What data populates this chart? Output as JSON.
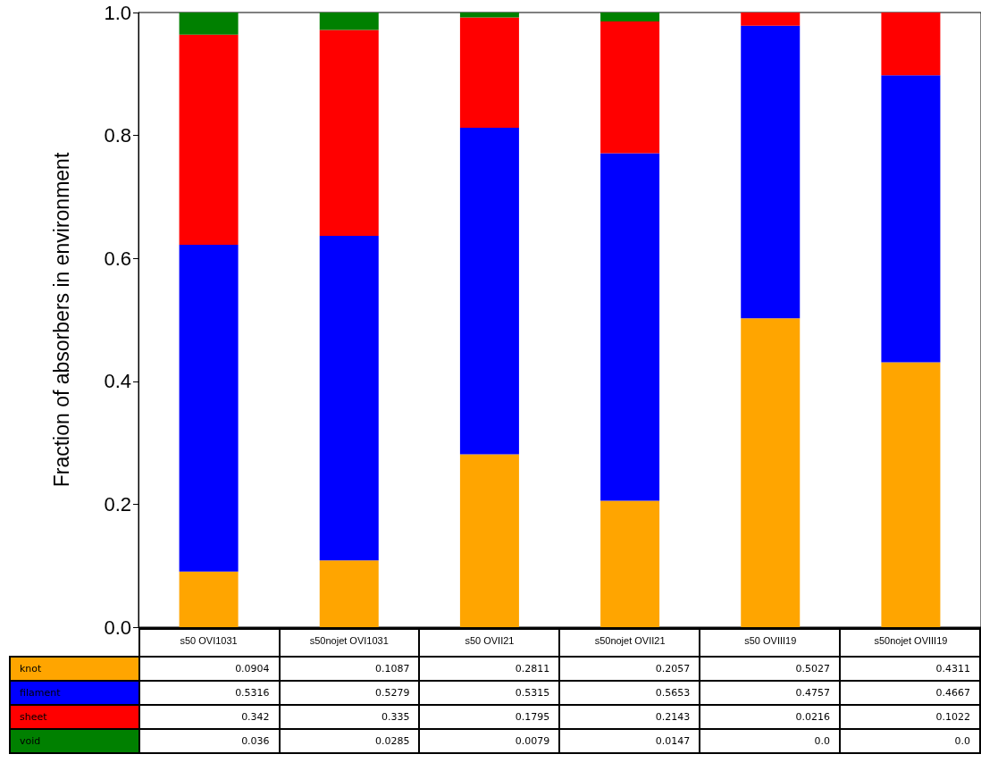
{
  "chart_data": {
    "type": "bar",
    "stacked": true,
    "ylabel": "Fraction of absorbers in environment",
    "categories": [
      "s50 OVI1031",
      "s50nojet OVI1031",
      "s50 OVII21",
      "s50nojet OVII21",
      "s50 OVIII19",
      "s50nojet OVIII19"
    ],
    "ylim": [
      0,
      1
    ],
    "yticks": [
      {
        "value": 0,
        "label": "0.0"
      },
      {
        "value": 0.2,
        "label": "0.2"
      },
      {
        "value": 0.4,
        "label": "0.4"
      },
      {
        "value": 0.6,
        "label": "0.6"
      },
      {
        "value": 0.8,
        "label": "0.8"
      },
      {
        "value": 1,
        "label": "1.0"
      }
    ],
    "grid": false,
    "series": [
      {
        "name": "knot",
        "color": "#ffa500",
        "values": [
          0.0904,
          0.1087,
          0.2811,
          0.2057,
          0.5027,
          0.4311
        ],
        "value_labels": [
          "0.0904",
          "0.1087",
          "0.2811",
          "0.2057",
          "0.5027",
          "0.4311"
        ]
      },
      {
        "name": "filament",
        "color": "#0000ff",
        "values": [
          0.5316,
          0.5279,
          0.5315,
          0.5653,
          0.4757,
          0.4667
        ],
        "value_labels": [
          "0.5316",
          "0.5279",
          "0.5315",
          "0.5653",
          "0.4757",
          "0.4667"
        ]
      },
      {
        "name": "sheet",
        "color": "#ff0000",
        "values": [
          0.342,
          0.335,
          0.1795,
          0.2143,
          0.0216,
          0.1022
        ],
        "value_labels": [
          "0.342",
          "0.335",
          "0.1795",
          "0.2143",
          "0.0216",
          "0.1022"
        ]
      },
      {
        "name": "void",
        "color": "#008000",
        "values": [
          0.036,
          0.0285,
          0.0079,
          0.0147,
          0.0,
          0.0
        ],
        "value_labels": [
          "0.036",
          "0.0285",
          "0.0079",
          "0.0147",
          "0.0",
          "0.0"
        ]
      }
    ]
  }
}
